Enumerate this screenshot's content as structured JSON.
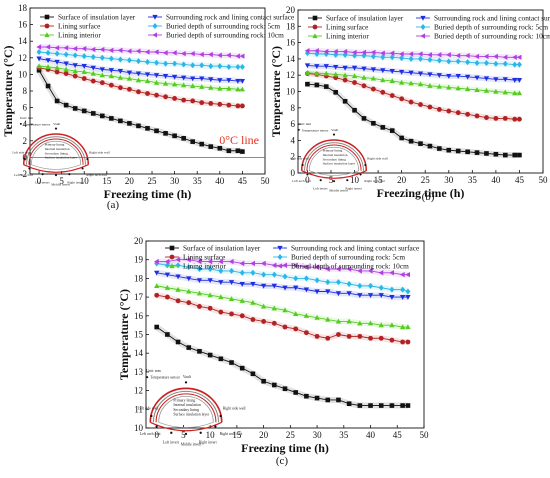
{
  "legend_entries": [
    {
      "name": "Surface of insulation layer",
      "color": "#111111",
      "marker": "square"
    },
    {
      "name": "Lining surface",
      "color": "#b22222",
      "marker": "circle"
    },
    {
      "name": "Lining interior",
      "color": "#55cc22",
      "marker": "triangle-up"
    },
    {
      "name": "Surrounding rock and lining contact surface",
      "color": "#1f2fe0",
      "marker": "triangle-down"
    },
    {
      "name": "Buried depth of surrounding rock: 5cm",
      "color": "#2ab6e8",
      "marker": "diamond"
    },
    {
      "name": "Buried depth of surrounding rock: 10cm",
      "color": "#b040e0",
      "marker": "triangle-left"
    }
  ],
  "inset_diagram": {
    "unit_label": "Unit: mm",
    "sensor_label": "Temperature sensor",
    "layers": [
      "Primary lining",
      "Internal insulation",
      "Secondary lining",
      "Surface insulation layer"
    ],
    "positions": [
      "Vault",
      "Left side wall",
      "Right side wall",
      "Left arch foot",
      "Right arch foot",
      "Left invert",
      "Middle invert",
      "Right invert"
    ]
  },
  "chart_data": [
    {
      "type": "line",
      "panel": "(a)",
      "xlabel": "Freezing time (h)",
      "ylabel": "Temperature (°C)",
      "xlim": [
        -2,
        50
      ],
      "ylim": [
        -2,
        18
      ],
      "xticks": [
        0,
        5,
        10,
        15,
        20,
        25,
        30,
        35,
        40,
        45,
        50
      ],
      "yticks": [
        -2,
        0,
        2,
        4,
        6,
        8,
        10,
        12,
        14,
        16,
        18
      ],
      "annotation": "0°C line",
      "reference_line_y": 0,
      "series": [
        {
          "name": "Surface of insulation layer",
          "x": [
            0,
            2,
            4,
            6,
            8,
            10,
            12,
            14,
            16,
            18,
            20,
            22,
            24,
            26,
            28,
            30,
            32,
            34,
            36,
            38,
            40,
            42,
            44,
            45
          ],
          "y": [
            10.5,
            8.6,
            6.8,
            6.3,
            5.9,
            5.6,
            5.3,
            5.0,
            4.7,
            4.4,
            4.1,
            3.8,
            3.5,
            3.2,
            2.9,
            2.6,
            2.3,
            1.9,
            1.6,
            1.3,
            1.1,
            0.8,
            0.8,
            0.7
          ]
        },
        {
          "name": "Lining surface",
          "x": [
            0,
            2,
            4,
            6,
            8,
            10,
            12,
            14,
            16,
            18,
            20,
            22,
            24,
            26,
            28,
            30,
            32,
            34,
            36,
            38,
            40,
            42,
            44,
            45
          ],
          "y": [
            10.8,
            10.6,
            10.3,
            10.1,
            9.8,
            9.5,
            9.2,
            9.0,
            8.7,
            8.4,
            8.2,
            7.9,
            7.7,
            7.5,
            7.3,
            7.1,
            6.9,
            6.8,
            6.6,
            6.5,
            6.4,
            6.3,
            6.2,
            6.2
          ]
        },
        {
          "name": "Lining interior",
          "x": [
            0,
            2,
            4,
            6,
            8,
            10,
            12,
            14,
            16,
            18,
            20,
            22,
            24,
            26,
            28,
            30,
            32,
            34,
            36,
            38,
            40,
            42,
            44,
            45
          ],
          "y": [
            11.0,
            10.9,
            10.8,
            10.6,
            10.4,
            10.3,
            10.1,
            9.9,
            9.8,
            9.6,
            9.5,
            9.3,
            9.2,
            9.0,
            8.9,
            8.8,
            8.7,
            8.6,
            8.5,
            8.4,
            8.3,
            8.3,
            8.2,
            8.2
          ]
        },
        {
          "name": "Surrounding rock and lining contact surface",
          "x": [
            0,
            2,
            4,
            6,
            8,
            10,
            12,
            14,
            16,
            18,
            20,
            22,
            24,
            26,
            28,
            30,
            32,
            34,
            36,
            38,
            40,
            42,
            44,
            45
          ],
          "y": [
            11.9,
            11.7,
            11.5,
            11.3,
            11.1,
            11.0,
            10.8,
            10.6,
            10.5,
            10.4,
            10.2,
            10.1,
            10.0,
            9.9,
            9.8,
            9.7,
            9.6,
            9.5,
            9.5,
            9.4,
            9.3,
            9.3,
            9.2,
            9.2
          ]
        },
        {
          "name": "Buried depth of surrounding rock: 5cm",
          "x": [
            0,
            2,
            4,
            6,
            8,
            10,
            12,
            14,
            16,
            18,
            20,
            22,
            24,
            26,
            28,
            30,
            32,
            34,
            36,
            38,
            40,
            42,
            44,
            45
          ],
          "y": [
            12.7,
            12.6,
            12.5,
            12.4,
            12.3,
            12.2,
            12.1,
            12.0,
            11.9,
            11.8,
            11.7,
            11.6,
            11.5,
            11.4,
            11.3,
            11.3,
            11.2,
            11.1,
            11.1,
            11.0,
            11.0,
            10.9,
            10.9,
            10.9
          ]
        },
        {
          "name": "Buried depth of surrounding rock: 10cm",
          "x": [
            0,
            2,
            4,
            6,
            8,
            10,
            12,
            14,
            16,
            18,
            20,
            22,
            24,
            26,
            28,
            30,
            32,
            34,
            36,
            38,
            40,
            42,
            44,
            45
          ],
          "y": [
            13.3,
            13.3,
            13.2,
            13.2,
            13.1,
            13.1,
            13.0,
            13.0,
            12.9,
            12.9,
            12.8,
            12.8,
            12.7,
            12.7,
            12.6,
            12.6,
            12.5,
            12.5,
            12.4,
            12.4,
            12.3,
            12.3,
            12.2,
            12.2
          ]
        }
      ]
    },
    {
      "type": "line",
      "panel": "(b)",
      "xlabel": "Freezing time (h)",
      "ylabel": "Temperature (°C)",
      "xlim": [
        -2,
        50
      ],
      "ylim": [
        0,
        20
      ],
      "xticks": [
        0,
        5,
        10,
        15,
        20,
        25,
        30,
        35,
        40,
        45,
        50
      ],
      "yticks": [
        0,
        2,
        4,
        6,
        8,
        10,
        12,
        14,
        16,
        18,
        20
      ],
      "series": [
        {
          "name": "Surface of insulation layer",
          "x": [
            0,
            2,
            4,
            6,
            8,
            10,
            12,
            14,
            16,
            18,
            20,
            22,
            24,
            26,
            28,
            30,
            32,
            34,
            36,
            38,
            40,
            42,
            44,
            45
          ],
          "y": [
            10.9,
            10.8,
            10.6,
            9.9,
            8.8,
            7.7,
            6.7,
            6.1,
            5.6,
            5.2,
            4.3,
            3.9,
            3.6,
            3.3,
            3.0,
            2.8,
            2.7,
            2.6,
            2.5,
            2.4,
            2.3,
            2.2,
            2.2,
            2.2
          ]
        },
        {
          "name": "Lining surface",
          "x": [
            0,
            2,
            4,
            6,
            8,
            10,
            12,
            14,
            16,
            18,
            20,
            22,
            24,
            26,
            28,
            30,
            32,
            34,
            36,
            38,
            40,
            42,
            44,
            45
          ],
          "y": [
            12.2,
            12.1,
            11.9,
            11.7,
            11.4,
            11.1,
            10.7,
            10.3,
            9.9,
            9.5,
            9.1,
            8.7,
            8.4,
            8.1,
            7.8,
            7.6,
            7.4,
            7.2,
            7.0,
            6.8,
            6.7,
            6.7,
            6.6,
            6.6
          ]
        },
        {
          "name": "Lining interior",
          "x": [
            0,
            2,
            4,
            6,
            8,
            10,
            12,
            14,
            16,
            18,
            20,
            22,
            24,
            26,
            28,
            30,
            32,
            34,
            36,
            38,
            40,
            42,
            44,
            45
          ],
          "y": [
            12.3,
            12.2,
            12.2,
            12.1,
            12.0,
            11.9,
            11.7,
            11.6,
            11.4,
            11.3,
            11.1,
            11.0,
            10.9,
            10.7,
            10.6,
            10.5,
            10.4,
            10.3,
            10.2,
            10.1,
            10.0,
            9.9,
            9.8,
            9.8
          ]
        },
        {
          "name": "Surrounding rock and lining contact surface",
          "x": [
            0,
            2,
            4,
            6,
            8,
            10,
            12,
            14,
            16,
            18,
            20,
            22,
            24,
            26,
            28,
            30,
            32,
            34,
            36,
            38,
            40,
            42,
            44,
            45
          ],
          "y": [
            13.2,
            13.1,
            13.1,
            13.0,
            12.9,
            12.9,
            12.8,
            12.7,
            12.6,
            12.5,
            12.4,
            12.3,
            12.2,
            12.1,
            12.0,
            11.9,
            11.9,
            11.8,
            11.7,
            11.6,
            11.5,
            11.5,
            11.4,
            11.4
          ]
        },
        {
          "name": "Buried depth of surrounding rock: 5cm",
          "x": [
            0,
            2,
            4,
            6,
            8,
            10,
            12,
            14,
            16,
            18,
            20,
            22,
            24,
            26,
            28,
            30,
            32,
            34,
            36,
            38,
            40,
            42,
            44,
            45
          ],
          "y": [
            14.7,
            14.6,
            14.6,
            14.5,
            14.5,
            14.4,
            14.4,
            14.3,
            14.2,
            14.2,
            14.1,
            14.0,
            14.0,
            13.9,
            13.8,
            13.7,
            13.7,
            13.6,
            13.5,
            13.5,
            13.4,
            13.4,
            13.3,
            13.3
          ]
        },
        {
          "name": "Buried depth of surrounding rock: 10cm",
          "x": [
            0,
            2,
            4,
            6,
            8,
            10,
            12,
            14,
            16,
            18,
            20,
            22,
            24,
            26,
            28,
            30,
            32,
            34,
            36,
            38,
            40,
            42,
            44,
            45
          ],
          "y": [
            15.0,
            15.0,
            14.9,
            14.9,
            14.9,
            14.8,
            14.8,
            14.8,
            14.7,
            14.7,
            14.6,
            14.6,
            14.6,
            14.5,
            14.5,
            14.5,
            14.4,
            14.4,
            14.3,
            14.3,
            14.3,
            14.2,
            14.2,
            14.2
          ]
        }
      ]
    },
    {
      "type": "line",
      "panel": "(c)",
      "xlabel": "Freezing time (h)",
      "ylabel": "Temperature (°C)",
      "xlim": [
        -2,
        50
      ],
      "ylim": [
        10,
        20
      ],
      "xticks": [
        0,
        5,
        10,
        15,
        20,
        25,
        30,
        35,
        40,
        45,
        50
      ],
      "yticks": [
        10,
        11,
        12,
        13,
        14,
        15,
        16,
        17,
        18,
        19,
        20
      ],
      "series": [
        {
          "name": "Surface of insulation layer",
          "x": [
            0,
            2,
            4,
            6,
            8,
            10,
            12,
            14,
            16,
            18,
            20,
            22,
            24,
            26,
            28,
            30,
            32,
            34,
            36,
            38,
            40,
            42,
            44,
            46,
            47
          ],
          "y": [
            15.4,
            15.0,
            14.6,
            14.3,
            14.1,
            13.9,
            13.7,
            13.5,
            13.2,
            12.9,
            12.5,
            12.3,
            12.1,
            11.9,
            11.7,
            11.6,
            11.5,
            11.5,
            11.3,
            11.2,
            11.2,
            11.2,
            11.2,
            11.2,
            11.2
          ]
        },
        {
          "name": "Lining surface",
          "x": [
            0,
            2,
            4,
            6,
            8,
            10,
            12,
            14,
            16,
            18,
            20,
            22,
            24,
            26,
            28,
            30,
            32,
            34,
            36,
            38,
            40,
            42,
            44,
            46,
            47
          ],
          "y": [
            17.1,
            17.0,
            16.8,
            16.7,
            16.5,
            16.4,
            16.2,
            16.1,
            16.0,
            15.8,
            15.7,
            15.6,
            15.4,
            15.3,
            15.1,
            14.9,
            14.8,
            15.0,
            14.9,
            14.9,
            14.8,
            14.8,
            14.7,
            14.6,
            14.6
          ]
        },
        {
          "name": "Lining interior",
          "x": [
            0,
            2,
            4,
            6,
            8,
            10,
            12,
            14,
            16,
            18,
            20,
            22,
            24,
            26,
            28,
            30,
            32,
            34,
            36,
            38,
            40,
            42,
            44,
            46,
            47
          ],
          "y": [
            17.6,
            17.5,
            17.4,
            17.3,
            17.2,
            17.1,
            17.0,
            16.9,
            16.8,
            16.7,
            16.5,
            16.4,
            16.3,
            16.1,
            16.0,
            15.9,
            15.8,
            15.7,
            15.7,
            15.6,
            15.6,
            15.5,
            15.5,
            15.4,
            15.4
          ]
        },
        {
          "name": "Surrounding rock and lining contact surface",
          "x": [
            0,
            2,
            4,
            6,
            8,
            10,
            12,
            14,
            16,
            18,
            20,
            22,
            24,
            26,
            28,
            30,
            32,
            34,
            36,
            38,
            40,
            42,
            44,
            46,
            47
          ],
          "y": [
            18.3,
            18.2,
            18.1,
            18.0,
            17.9,
            17.9,
            17.8,
            17.8,
            17.7,
            17.7,
            17.6,
            17.6,
            17.5,
            17.5,
            17.4,
            17.3,
            17.3,
            17.2,
            17.2,
            17.1,
            17.1,
            17.1,
            17.0,
            17.0,
            17.0
          ]
        },
        {
          "name": "Buried depth of surrounding rock: 5cm",
          "x": [
            0,
            2,
            4,
            6,
            8,
            10,
            12,
            14,
            16,
            18,
            20,
            22,
            24,
            26,
            28,
            30,
            32,
            34,
            36,
            38,
            40,
            42,
            44,
            46,
            47
          ],
          "y": [
            18.8,
            18.7,
            18.7,
            18.6,
            18.5,
            18.5,
            18.4,
            18.4,
            18.3,
            18.3,
            18.2,
            18.2,
            18.1,
            18.0,
            18.0,
            17.9,
            17.8,
            17.8,
            17.7,
            17.6,
            17.6,
            17.5,
            17.4,
            17.4,
            17.3
          ]
        },
        {
          "name": "Buried depth of surrounding rock: 10cm",
          "x": [
            0,
            2,
            4,
            6,
            8,
            10,
            12,
            14,
            16,
            18,
            20,
            22,
            24,
            26,
            28,
            30,
            32,
            34,
            36,
            38,
            40,
            42,
            44,
            46,
            47
          ],
          "y": [
            18.9,
            18.9,
            19.0,
            19.0,
            18.9,
            18.9,
            18.9,
            18.9,
            18.8,
            18.8,
            18.8,
            18.7,
            18.7,
            18.7,
            18.6,
            18.6,
            18.5,
            18.5,
            18.5,
            18.4,
            18.4,
            18.3,
            18.3,
            18.2,
            18.2
          ]
        }
      ]
    }
  ]
}
